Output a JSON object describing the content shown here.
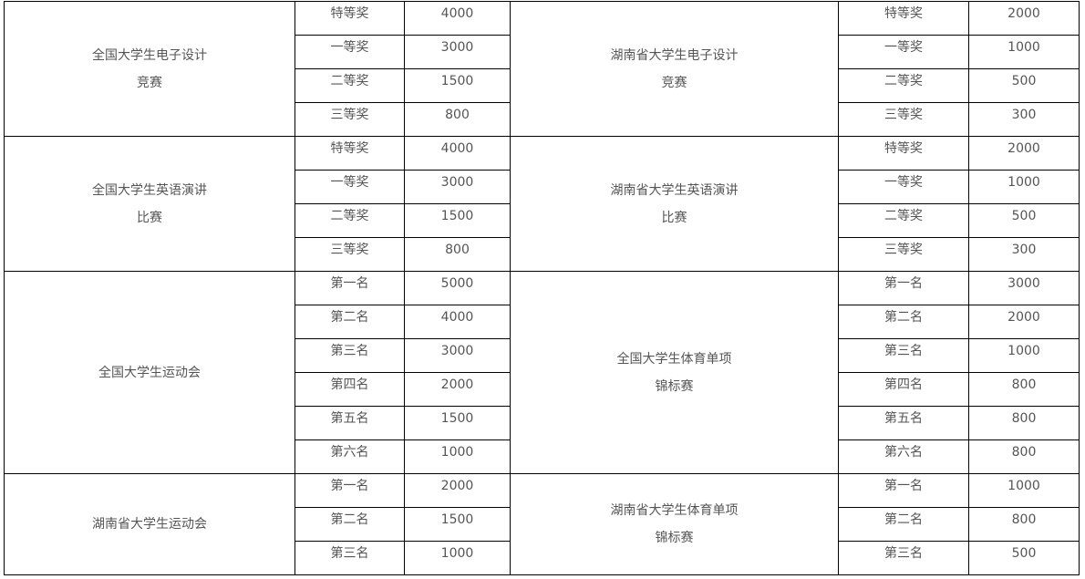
{
  "blocks": [
    {
      "left": {
        "name": [
          "全国大学生电子设计",
          "竞赛"
        ],
        "rows": [
          [
            "特等奖",
            "4000"
          ],
          [
            "一等奖",
            "3000"
          ],
          [
            "二等奖",
            "1500"
          ],
          [
            "三等奖",
            "800"
          ]
        ]
      },
      "right": {
        "name": [
          "湖南省大学生电子设计",
          "竞赛"
        ],
        "rows": [
          [
            "特等奖",
            "2000"
          ],
          [
            "一等奖",
            "1000"
          ],
          [
            "二等奖",
            "500"
          ],
          [
            "三等奖",
            "300"
          ]
        ]
      }
    },
    {
      "left": {
        "name": [
          "全国大学生英语演讲",
          "比赛"
        ],
        "rows": [
          [
            "特等奖",
            "4000"
          ],
          [
            "一等奖",
            "3000"
          ],
          [
            "二等奖",
            "1500"
          ],
          [
            "三等奖",
            "800"
          ]
        ]
      },
      "right": {
        "name": [
          "湖南省大学生英语演讲",
          "比赛"
        ],
        "rows": [
          [
            "特等奖",
            "2000"
          ],
          [
            "一等奖",
            "1000"
          ],
          [
            "二等奖",
            "500"
          ],
          [
            "三等奖",
            "300"
          ]
        ]
      }
    },
    {
      "left": {
        "name": [
          "全国大学生运动会"
        ],
        "rows": [
          [
            "第一名",
            "5000"
          ],
          [
            "第二名",
            "4000"
          ],
          [
            "第三名",
            "3000"
          ],
          [
            "第四名",
            "2000"
          ],
          [
            "第五名",
            "1500"
          ],
          [
            "第六名",
            "1000"
          ]
        ]
      },
      "right": {
        "name": [
          "全国大学生体育单项",
          "锦标赛"
        ],
        "rows": [
          [
            "第一名",
            "3000"
          ],
          [
            "第二名",
            "2000"
          ],
          [
            "第三名",
            "1000"
          ],
          [
            "第四名",
            "800"
          ],
          [
            "第五名",
            "800"
          ],
          [
            "第六名",
            "800"
          ]
        ]
      }
    },
    {
      "left": {
        "name": [
          "湖南省大学生运动会"
        ],
        "rows": [
          [
            "第一名",
            "2000"
          ],
          [
            "第二名",
            "1500"
          ],
          [
            "第三名",
            "1000"
          ]
        ]
      },
      "right": {
        "name": [
          "湖南省大学生体育单项",
          "锦标赛"
        ],
        "rows": [
          [
            "第一名",
            "1000"
          ],
          [
            "第二名",
            "800"
          ],
          [
            "第三名",
            "500"
          ]
        ]
      }
    }
  ]
}
